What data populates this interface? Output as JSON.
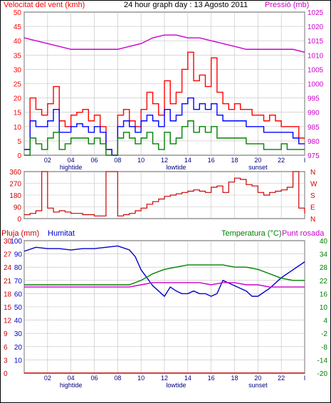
{
  "chart_data": [
    {
      "type": "line",
      "title": "24 hour graph day : 13 Agosto 2011",
      "ylabel_left": "Velocitat del vent (kmh)",
      "ylabel_right": "Pressió (mb)",
      "x_ticks": [
        "02",
        "04",
        "06",
        "08",
        "10",
        "12",
        "14",
        "16",
        "18",
        "20",
        "22",
        "I"
      ],
      "x_markers": [
        "hightide",
        "lowtide",
        "sunset"
      ],
      "y_ticks_left": [
        "0",
        "5",
        "10",
        "15",
        "20",
        "25",
        "30",
        "35",
        "40",
        "45",
        "50"
      ],
      "y_ticks_right": [
        "975",
        "980",
        "985",
        "990",
        "995",
        "1000",
        "1005",
        "1010",
        "1015",
        "1020",
        "1025"
      ],
      "ylim_left": [
        0,
        50
      ],
      "ylim_right": [
        975,
        1025
      ],
      "colors": {
        "wind_gust": "#ff0000",
        "wind_avg": "#0000ff",
        "wind_low": "#008000",
        "pressure": "#cc00cc",
        "axis_left": "#ff0000",
        "axis_right": "#cc00cc"
      },
      "series": [
        {
          "key": "pressure",
          "axis": "right",
          "x": [
            0,
            1,
            2,
            3,
            4,
            5,
            6,
            7,
            8,
            9,
            10,
            11,
            12,
            13,
            14,
            15,
            16,
            17,
            18,
            19,
            20,
            21,
            22,
            23,
            24
          ],
          "values": [
            1016,
            1015,
            1014,
            1013,
            1012,
            1012,
            1012,
            1012,
            1012,
            1013,
            1014,
            1016,
            1017,
            1017,
            1016,
            1016,
            1015,
            1014,
            1013,
            1012,
            1012,
            1012,
            1012,
            1012,
            1011
          ]
        },
        {
          "key": "wind_gust",
          "axis": "left",
          "x": [
            0,
            0.5,
            1,
            1.5,
            2,
            2.5,
            3,
            3.5,
            4,
            4.5,
            5,
            5.5,
            6,
            6.5,
            7,
            7.5,
            8,
            8.5,
            9,
            9.5,
            10,
            10.5,
            11,
            11.5,
            12,
            12.5,
            13,
            13.5,
            14,
            14.5,
            15,
            15.5,
            16,
            16.5,
            17,
            17.5,
            18,
            18.5,
            19,
            19.5,
            20,
            20.5,
            21,
            21.5,
            22,
            22.5,
            23,
            23.5,
            24
          ],
          "values": [
            2,
            20,
            16,
            14,
            18,
            24,
            12,
            10,
            14,
            15,
            16,
            12,
            14,
            10,
            2,
            0,
            14,
            16,
            12,
            10,
            16,
            22,
            18,
            14,
            26,
            18,
            22,
            30,
            36,
            26,
            28,
            24,
            34,
            22,
            18,
            16,
            18,
            16,
            16,
            14,
            14,
            12,
            14,
            12,
            10,
            10,
            10,
            6,
            6
          ]
        },
        {
          "key": "wind_avg",
          "axis": "left",
          "x": [
            0,
            0.5,
            1,
            1.5,
            2,
            2.5,
            3,
            3.5,
            4,
            4.5,
            5,
            5.5,
            6,
            6.5,
            7,
            7.5,
            8,
            8.5,
            9,
            9.5,
            10,
            10.5,
            11,
            11.5,
            12,
            12.5,
            13,
            13.5,
            14,
            14.5,
            15,
            15.5,
            16,
            16.5,
            17,
            17.5,
            18,
            18.5,
            19,
            19.5,
            20,
            20.5,
            21,
            21.5,
            22,
            22.5,
            23,
            23.5,
            24
          ],
          "values": [
            2,
            12,
            10,
            10,
            12,
            16,
            8,
            8,
            10,
            11,
            10,
            8,
            10,
            8,
            2,
            0,
            10,
            12,
            10,
            8,
            12,
            14,
            12,
            10,
            16,
            12,
            14,
            18,
            20,
            16,
            18,
            16,
            18,
            14,
            12,
            12,
            12,
            12,
            10,
            10,
            10,
            8,
            8,
            8,
            8,
            8,
            6,
            4,
            4
          ]
        },
        {
          "key": "wind_low",
          "axis": "left",
          "x": [
            0,
            0.5,
            1,
            1.5,
            2,
            2.5,
            3,
            3.5,
            4,
            4.5,
            5,
            5.5,
            6,
            6.5,
            7,
            7.5,
            8,
            8.5,
            9,
            9.5,
            10,
            10.5,
            11,
            11.5,
            12,
            12.5,
            13,
            13.5,
            14,
            14.5,
            15,
            15.5,
            16,
            16.5,
            17,
            17.5,
            18,
            18.5,
            19,
            19.5,
            20,
            20.5,
            21,
            21.5,
            22,
            22.5,
            23,
            23.5,
            24
          ],
          "values": [
            0,
            6,
            4,
            2,
            6,
            8,
            2,
            4,
            6,
            6,
            6,
            4,
            6,
            4,
            0,
            0,
            6,
            8,
            6,
            4,
            6,
            8,
            4,
            2,
            8,
            4,
            6,
            10,
            12,
            8,
            10,
            8,
            10,
            6,
            6,
            6,
            6,
            6,
            4,
            4,
            4,
            2,
            2,
            2,
            4,
            2,
            2,
            2,
            2
          ]
        }
      ]
    },
    {
      "type": "line",
      "y_ticks_left": [
        "0",
        "90",
        "180",
        "270",
        "360"
      ],
      "y_ticks_right": [
        "N",
        "E",
        "S",
        "W",
        "N"
      ],
      "ylim": [
        0,
        360
      ],
      "colors": {
        "direction": "#cc0000"
      },
      "series": [
        {
          "key": "direction",
          "x": [
            0,
            0.5,
            1,
            1.5,
            2,
            2.5,
            3,
            3.5,
            4,
            4.5,
            5,
            5.5,
            6,
            6.5,
            7,
            7.5,
            8,
            8.5,
            9,
            9.5,
            10,
            10.5,
            11,
            11.5,
            12,
            12.5,
            13,
            13.5,
            14,
            14.5,
            15,
            15.5,
            16,
            16.5,
            17,
            17.5,
            18,
            18.5,
            19,
            19.5,
            20,
            20.5,
            21,
            21.5,
            22,
            22.5,
            23,
            23.5,
            24
          ],
          "values": [
            30,
            40,
            60,
            360,
            80,
            50,
            60,
            50,
            40,
            40,
            30,
            30,
            20,
            20,
            360,
            360,
            20,
            30,
            40,
            60,
            80,
            110,
            130,
            150,
            170,
            180,
            190,
            200,
            210,
            220,
            210,
            200,
            240,
            250,
            200,
            280,
            310,
            300,
            260,
            250,
            200,
            180,
            200,
            210,
            220,
            240,
            360,
            80,
            40
          ]
        }
      ]
    },
    {
      "type": "line",
      "ylabel_left_1": "Pluja (mm)",
      "ylabel_left_2": "Humitat",
      "ylabel_right_1": "Temperatura (°C)",
      "ylabel_right_2": "Punt rosada",
      "y_ticks_rain": [
        "0",
        "3",
        "6",
        "9",
        "12",
        "15",
        "18",
        "21",
        "24",
        "27",
        "30"
      ],
      "y_ticks_humidity": [
        "10",
        "20",
        "30",
        "40",
        "50",
        "60",
        "70",
        "80",
        "90",
        "100"
      ],
      "y_ticks_temp": [
        "-20",
        "-14",
        "-8",
        "-2",
        "4",
        "10",
        "16",
        "22",
        "28",
        "34",
        "40"
      ],
      "ylim_humidity": [
        0,
        100
      ],
      "ylim_temp": [
        -20,
        40
      ],
      "colors": {
        "humidity": "#0000cc",
        "temperature": "#008000",
        "dewpoint": "#cc00cc",
        "rain": "#cc0000",
        "axis_rain": "#cc0000",
        "axis_humidity": "#0000cc",
        "axis_temp": "#008000"
      },
      "series": [
        {
          "key": "humidity",
          "axis": "humidity",
          "x": [
            0,
            1,
            2,
            3,
            4,
            5,
            6,
            7,
            8,
            9,
            9.5,
            10,
            10.5,
            11,
            11.5,
            12,
            12.5,
            13,
            13.5,
            14,
            14.5,
            15,
            15.5,
            16,
            16.5,
            17,
            17.5,
            18,
            18.5,
            19,
            19.5,
            20,
            21,
            22,
            23,
            24
          ],
          "values": [
            92,
            95,
            94,
            94,
            93,
            94,
            94,
            95,
            96,
            93,
            88,
            78,
            72,
            66,
            62,
            58,
            65,
            62,
            60,
            60,
            62,
            60,
            60,
            58,
            60,
            70,
            68,
            66,
            64,
            62,
            58,
            58,
            64,
            72,
            78,
            84
          ]
        },
        {
          "key": "temperature",
          "axis": "temp",
          "x": [
            0,
            1,
            2,
            3,
            4,
            5,
            6,
            7,
            8,
            9,
            10,
            11,
            12,
            13,
            14,
            15,
            16,
            17,
            18,
            19,
            20,
            21,
            22,
            23,
            24
          ],
          "values": [
            20,
            20,
            20,
            20,
            20,
            20,
            20,
            20,
            20,
            20,
            22,
            25,
            27,
            28,
            29,
            29,
            29,
            29,
            28,
            28,
            27,
            25,
            23,
            22,
            22
          ]
        },
        {
          "key": "dewpoint",
          "axis": "temp",
          "x": [
            0,
            1,
            2,
            3,
            4,
            5,
            6,
            7,
            8,
            9,
            10,
            11,
            12,
            13,
            14,
            15,
            16,
            17,
            18,
            19,
            20,
            21,
            22,
            23,
            24
          ],
          "values": [
            19,
            19,
            19,
            19,
            19,
            19,
            19,
            19,
            19,
            19,
            20,
            21,
            21,
            21,
            21,
            21,
            20,
            21,
            21,
            20,
            20,
            19,
            19,
            19,
            19
          ]
        },
        {
          "key": "rain",
          "axis": "rain",
          "x": [
            0,
            24
          ],
          "values": [
            0,
            0
          ]
        }
      ]
    }
  ]
}
